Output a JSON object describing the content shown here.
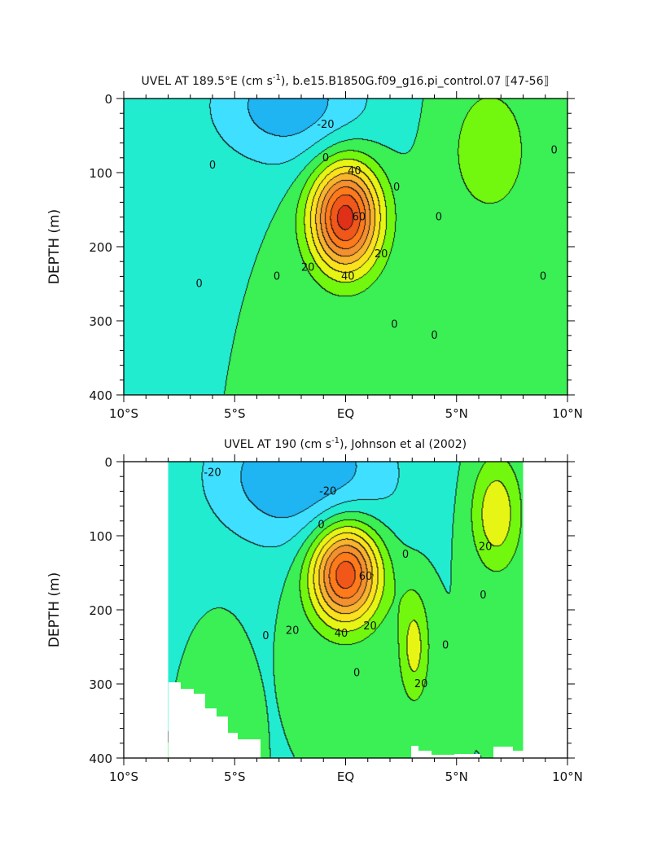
{
  "chart_data": [
    {
      "type": "contour",
      "title_main": "UVEL AT 189.5°E (cm s",
      "title_sup": "-1",
      "title_tail": "), b.e15.B1850G.f09_g16.pi_control.07 ⟦47-56⟧",
      "ylabel": "DEPTH (m)",
      "xlim": [
        -10,
        10
      ],
      "ylim": [
        400,
        0
      ],
      "x_ticks": [
        {
          "value": -10,
          "label": "10°S"
        },
        {
          "value": -5,
          "label": "5°S"
        },
        {
          "value": 0,
          "label": "EQ"
        },
        {
          "value": 5,
          "label": "5°N"
        },
        {
          "value": 10,
          "label": "10°N"
        }
      ],
      "y_ticks": [
        {
          "value": 0,
          "label": "0"
        },
        {
          "value": 100,
          "label": "100"
        },
        {
          "value": 200,
          "label": "200"
        },
        {
          "value": 300,
          "label": "300"
        },
        {
          "value": 400,
          "label": "400"
        }
      ],
      "contour_interval": 10,
      "data_x_range": [
        -10,
        10
      ],
      "fill_colors": {
        "-30": "#1fb4f2",
        "-20": "#3fe0ff",
        "-10": "#22ecd0",
        "0": "#3af055",
        "10": "#72f80f",
        "20": "#e6f514",
        "30": "#fce21c",
        "40": "#f9b42e",
        "50": "#f5902f",
        "60": "#ff7a1a",
        "70": "#f2571a",
        "80": "#e03018"
      },
      "features": [
        {
          "name": "EUC core",
          "x": 0,
          "depth": 160,
          "value": 85,
          "sx": 1.1,
          "sd": 52
        },
        {
          "name": "Surface westward flow",
          "x": -2.5,
          "depth": 10,
          "value": -26,
          "sx": 2.6,
          "sd": 60
        },
        {
          "name": "NECC",
          "x": 6.5,
          "depth": 70,
          "value": 15,
          "sx": 1.6,
          "sd": 80
        }
      ],
      "contour_labels": [
        {
          "text": "0",
          "x": -6.0,
          "depth": 90
        },
        {
          "text": "0",
          "x": -6.6,
          "depth": 250
        },
        {
          "text": "0",
          "x": -3.1,
          "depth": 240
        },
        {
          "text": "-20",
          "x": -0.9,
          "depth": 35
        },
        {
          "text": "0",
          "x": -0.9,
          "depth": 80
        },
        {
          "text": "40",
          "x": 0.4,
          "depth": 98
        },
        {
          "text": "60",
          "x": 0.6,
          "depth": 160
        },
        {
          "text": "20",
          "x": -1.7,
          "depth": 228
        },
        {
          "text": "40",
          "x": 0.1,
          "depth": 240
        },
        {
          "text": "20",
          "x": 1.6,
          "depth": 210
        },
        {
          "text": "0",
          "x": 2.3,
          "depth": 120
        },
        {
          "text": "0",
          "x": 2.2,
          "depth": 305
        },
        {
          "text": "0",
          "x": 4.2,
          "depth": 160
        },
        {
          "text": "0",
          "x": 4.0,
          "depth": 320
        },
        {
          "text": "0",
          "x": 9.4,
          "depth": 70
        },
        {
          "text": "0",
          "x": 8.9,
          "depth": 240
        }
      ]
    },
    {
      "type": "contour",
      "title_main": "UVEL AT 190 (cm s",
      "title_sup": "-1",
      "title_tail": "), Johnson et al (2002)",
      "ylabel": "DEPTH (m)",
      "xlim": [
        -10,
        10
      ],
      "ylim": [
        400,
        0
      ],
      "x_ticks": [
        {
          "value": -10,
          "label": "10°S"
        },
        {
          "value": -5,
          "label": "5°S"
        },
        {
          "value": 0,
          "label": "EQ"
        },
        {
          "value": 5,
          "label": "5°N"
        },
        {
          "value": 10,
          "label": "10°N"
        }
      ],
      "y_ticks": [
        {
          "value": 0,
          "label": "0"
        },
        {
          "value": 100,
          "label": "100"
        },
        {
          "value": 200,
          "label": "200"
        },
        {
          "value": 300,
          "label": "300"
        },
        {
          "value": 400,
          "label": "400"
        }
      ],
      "contour_interval": 10,
      "data_x_range": [
        -8,
        8
      ],
      "fill_colors": {
        "-30": "#1fb4f2",
        "-20": "#3fe0ff",
        "-10": "#22ecd0",
        "0": "#3af055",
        "10": "#72f80f",
        "20": "#e6f514",
        "30": "#fce21c",
        "40": "#f9b42e",
        "50": "#f5902f",
        "60": "#ff7a1a",
        "70": "#f2571a",
        "80": "#e03018"
      },
      "features": [
        {
          "name": "EUC core",
          "x": 0,
          "depth": 150,
          "value": 80,
          "sx": 1.1,
          "sd": 48
        },
        {
          "name": "Surface westward flow",
          "x": -2.0,
          "depth": 20,
          "value": -30,
          "sx": 3.0,
          "sd": 70
        },
        {
          "name": "Northern subsurface jet",
          "x": 3.1,
          "depth": 250,
          "value": 24,
          "sx": 0.5,
          "sd": 55
        },
        {
          "name": "NECC",
          "x": 6.8,
          "depth": 70,
          "value": 28,
          "sx": 0.8,
          "sd": 55
        },
        {
          "name": "Southern subsurface jet",
          "x": -5.6,
          "depth": 290,
          "value": 8,
          "sx": 0.5,
          "sd": 40
        }
      ],
      "contour_labels": [
        {
          "text": "-20",
          "x": -6.0,
          "depth": 15
        },
        {
          "text": "-20",
          "x": -0.8,
          "depth": 40
        },
        {
          "text": "0",
          "x": -1.1,
          "depth": 85
        },
        {
          "text": "60",
          "x": 0.9,
          "depth": 155
        },
        {
          "text": "20",
          "x": -2.4,
          "depth": 228
        },
        {
          "text": "40",
          "x": -0.2,
          "depth": 232
        },
        {
          "text": "20",
          "x": 1.1,
          "depth": 222
        },
        {
          "text": "0",
          "x": 2.7,
          "depth": 125
        },
        {
          "text": "0",
          "x": -3.6,
          "depth": 235
        },
        {
          "text": "0",
          "x": 0.5,
          "depth": 285
        },
        {
          "text": "20",
          "x": 3.4,
          "depth": 300
        },
        {
          "text": "0",
          "x": 4.5,
          "depth": 248
        },
        {
          "text": "20",
          "x": 6.3,
          "depth": 115
        },
        {
          "text": "0",
          "x": 6.2,
          "depth": 180
        }
      ]
    }
  ]
}
